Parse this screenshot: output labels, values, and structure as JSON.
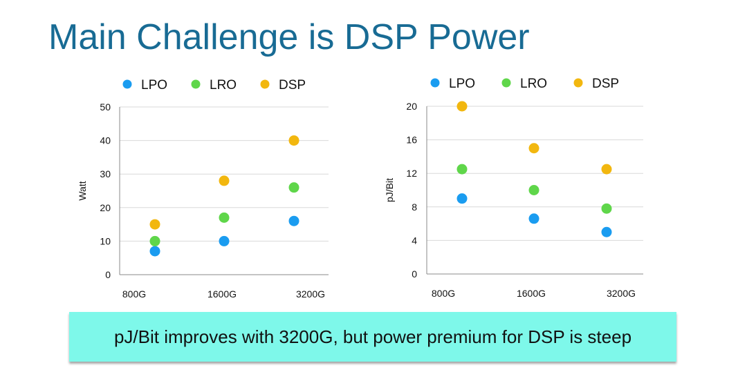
{
  "slide": {
    "title": "Main Challenge is DSP Power",
    "callout": "pJ/Bit improves with 3200G, but power premium for DSP is steep"
  },
  "colors": {
    "title": "#186b94",
    "callout_bg": "#7ef8ea",
    "LPO": "#1a9cf0",
    "LRO": "#5fd64a",
    "DSP": "#f2b70f",
    "grid": "#d8d8d8",
    "axis": "#888888"
  },
  "chart_data": [
    {
      "type": "scatter",
      "title": "",
      "xlabel": "",
      "ylabel": "Watt",
      "categories": [
        "800G",
        "1600G",
        "3200G"
      ],
      "ylim": [
        0,
        50
      ],
      "yticks": [
        0,
        10,
        20,
        30,
        40,
        50
      ],
      "grid": true,
      "legend_position": "top",
      "series": [
        {
          "name": "LPO",
          "values": [
            7,
            10,
            16
          ]
        },
        {
          "name": "LRO",
          "values": [
            10,
            17,
            26
          ]
        },
        {
          "name": "DSP",
          "values": [
            15,
            28,
            40
          ]
        }
      ]
    },
    {
      "type": "scatter",
      "title": "",
      "xlabel": "",
      "ylabel": "pJ/Bit",
      "categories": [
        "800G",
        "1600G",
        "3200G"
      ],
      "ylim": [
        0,
        20
      ],
      "yticks": [
        0,
        4,
        8,
        12,
        16,
        20
      ],
      "grid": true,
      "legend_position": "top",
      "series": [
        {
          "name": "LPO",
          "values": [
            9,
            6.6,
            5
          ]
        },
        {
          "name": "LRO",
          "values": [
            12.5,
            10,
            7.8
          ]
        },
        {
          "name": "DSP",
          "values": [
            20,
            15,
            12.5
          ]
        }
      ]
    }
  ]
}
